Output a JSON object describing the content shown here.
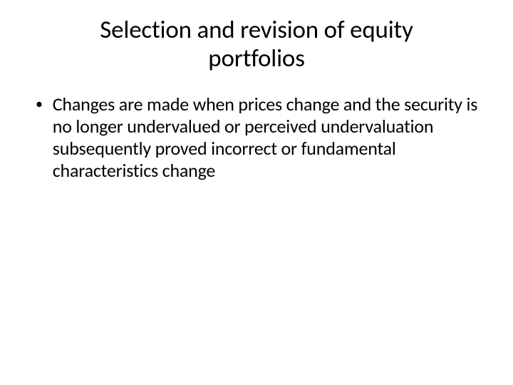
{
  "slide": {
    "title": "Selection and revision of equity portfolios",
    "bullets": [
      {
        "text": "Changes are made when prices change and the security is no longer undervalued or perceived undervaluation subsequently proved incorrect or fundamental characteristics change"
      }
    ]
  },
  "styling": {
    "background_color": "#ffffff",
    "text_color": "#000000",
    "title_fontsize": 35,
    "body_fontsize": 26,
    "font_family": "Calibri"
  }
}
